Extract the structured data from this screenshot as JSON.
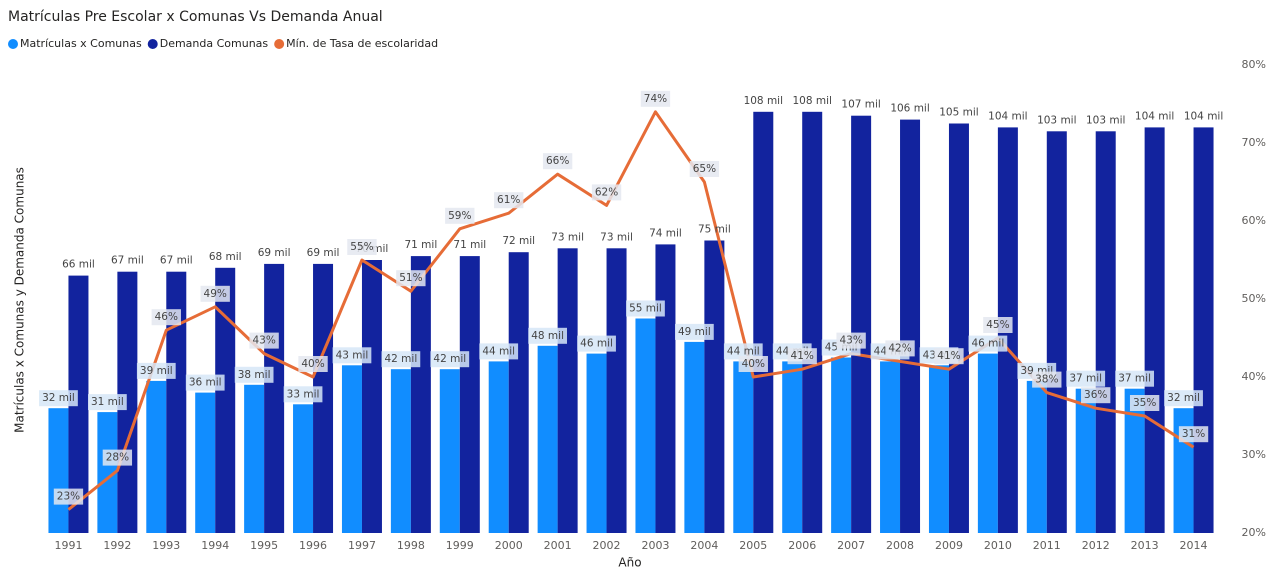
{
  "chart_data": {
    "type": "bar-line",
    "title": "Matrículas Pre Escolar x Comunas Vs Demanda Anual",
    "x_label": "Año",
    "y_label": "Matrículas x Comunas y Demanda Comunas",
    "categories": [
      "1991",
      "1992",
      "1993",
      "1994",
      "1995",
      "1996",
      "1997",
      "1998",
      "1999",
      "2000",
      "2001",
      "2002",
      "2003",
      "2004",
      "2005",
      "2006",
      "2007",
      "2008",
      "2009",
      "2010",
      "2011",
      "2012",
      "2013",
      "2014"
    ],
    "ylim": [
      0,
      120
    ],
    "y2lim": [
      20,
      80
    ],
    "y2ticks": [
      {
        "value": 20,
        "label": "20%"
      },
      {
        "value": 30,
        "label": "30%"
      },
      {
        "value": 40,
        "label": "40%"
      },
      {
        "value": 50,
        "label": "50%"
      },
      {
        "value": 60,
        "label": "60%"
      },
      {
        "value": 70,
        "label": "70%"
      },
      {
        "value": 80,
        "label": "80%"
      }
    ],
    "legend": "top-left",
    "series": [
      {
        "name": "Matrículas x  Comunas",
        "color": "#118DFF",
        "type": "bar",
        "values": [
          32,
          31,
          39,
          36,
          38,
          33,
          43,
          42,
          42,
          44,
          48,
          46,
          55,
          49,
          44,
          44,
          45,
          44,
          43,
          46,
          39,
          37,
          37,
          32
        ],
        "value_labels": [
          "32 mil",
          "31 mil",
          "39 mil",
          "36 mil",
          "38 mil",
          "33 mil",
          "43 mil",
          "42 mil",
          "42 mil",
          "44 mil",
          "48 mil",
          "46 mil",
          "55 mil",
          "49 mil",
          "44 mil",
          "44 mil",
          "45 mil",
          "44 mil",
          "43 mil",
          "46 mil",
          "39 mil",
          "37 mil",
          "37 mil",
          "32 mil"
        ]
      },
      {
        "name": "Demanda Comunas",
        "color": "#12239E",
        "type": "bar",
        "values": [
          66,
          67,
          67,
          68,
          69,
          69,
          70,
          71,
          71,
          72,
          73,
          73,
          74,
          75,
          108,
          108,
          107,
          106,
          105,
          104,
          103,
          103,
          104,
          104
        ],
        "value_labels": [
          "66 mil",
          "67 mil",
          "67 mil",
          "68 mil",
          "69 mil",
          "69 mil",
          "70 mil",
          "71 mil",
          "71 mil",
          "72 mil",
          "73 mil",
          "73 mil",
          "74 mil",
          "75 mil",
          "108 mil",
          "108 mil",
          "107 mil",
          "106 mil",
          "105 mil",
          "104 mil",
          "103 mil",
          "103 mil",
          "104 mil",
          "104 mil"
        ]
      },
      {
        "name": "Mín. de   Tasa de escolaridad",
        "color": "#E66C37",
        "type": "line",
        "axis": "y2",
        "values": [
          23,
          28,
          46,
          49,
          43,
          40,
          55,
          51,
          59,
          61,
          66,
          62,
          74,
          65,
          40,
          41,
          43,
          42,
          41,
          45,
          38,
          36,
          35,
          31
        ],
        "value_labels": [
          "23%",
          "28%",
          "46%",
          "49%",
          "43%",
          "40%",
          "55%",
          "51%",
          "59%",
          "61%",
          "66%",
          "62%",
          "74%",
          "65%",
          "40%",
          "41%",
          "43%",
          "42%",
          "41%",
          "45%",
          "38%",
          "36%",
          "35%",
          "31%"
        ]
      }
    ]
  }
}
